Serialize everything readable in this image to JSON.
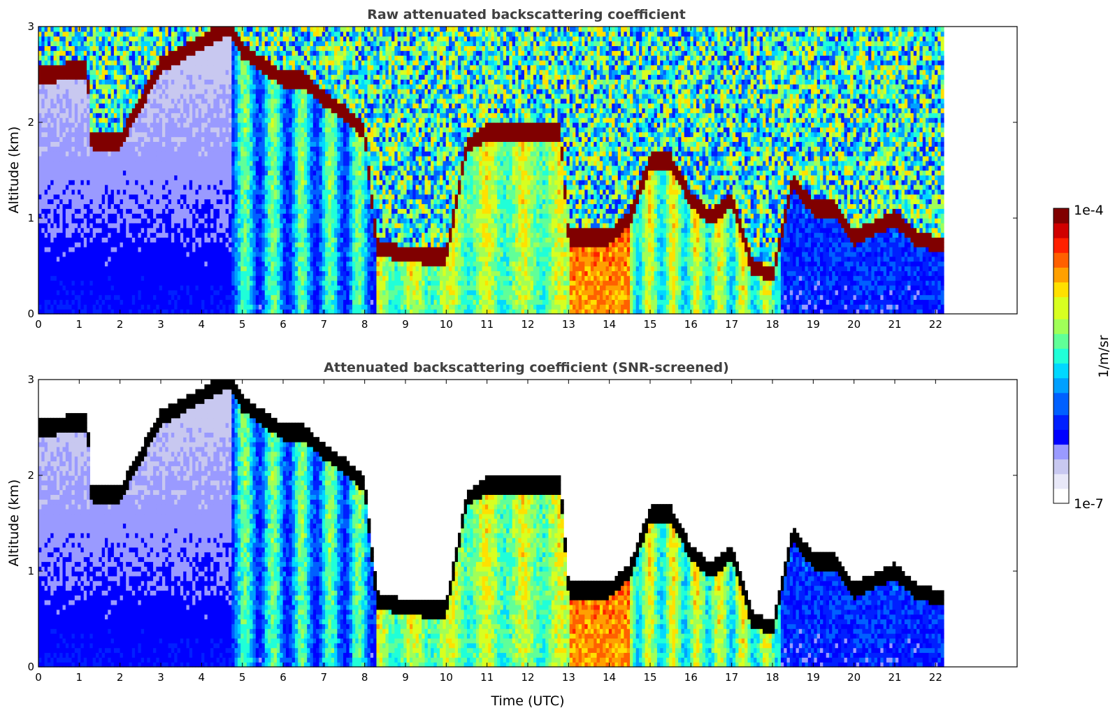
{
  "colormap": [
    "#ffffff",
    "#e8e8f8",
    "#c8c8f0",
    "#9a9aff",
    "#0000ff",
    "#0020ff",
    "#0060ff",
    "#00a0ff",
    "#00d8ff",
    "#20ffd8",
    "#60ff98",
    "#a0ff58",
    "#d8ff20",
    "#ffe000",
    "#ffa000",
    "#ff6000",
    "#ff2000",
    "#d00000",
    "#800000"
  ],
  "panels": [
    {
      "title": "Raw attenuated backscattering coefficient",
      "ylabel": "Altitude (km)",
      "xlabel": "",
      "screened": false
    },
    {
      "title": "Attenuated backscattering coefficient (SNR-screened)",
      "ylabel": "Altitude (km)",
      "xlabel": "Time (UTC)",
      "screened": true
    }
  ],
  "colorbar": {
    "label": "1/m/sr",
    "max_label": "1e-4",
    "min_label": "1e-7"
  },
  "chart_data": [
    {
      "type": "heatmap",
      "title": "Raw attenuated backscattering coefficient",
      "xlabel": "",
      "ylabel": "Altitude (km)",
      "xlim": [
        0,
        24
      ],
      "ylim": [
        0,
        3
      ],
      "xticks": [
        "0",
        "1",
        "2",
        "3",
        "4",
        "5",
        "6",
        "7",
        "8",
        "9",
        "10",
        "11",
        "12",
        "13",
        "14",
        "15",
        "16",
        "17",
        "18",
        "19",
        "20",
        "21",
        "22"
      ],
      "yticks": [
        "0",
        "1",
        "2",
        "3"
      ],
      "colorscale": "log",
      "zlim": [
        "1e-7",
        "1e-4"
      ],
      "zlabel": "1/m/sr",
      "data_extent_hours": [
        0,
        22.2
      ],
      "cloud_top_layer_km": {
        "time_h": [
          0.4,
          0.7,
          1.2,
          1.3,
          2.0,
          3.0,
          4.7,
          5.0,
          5.5,
          6.0,
          6.5,
          7.0,
          7.5,
          8.0,
          8.3,
          8.7,
          9.5,
          10.0,
          10.5,
          11.0,
          12.0,
          12.8,
          13.0,
          14.0,
          14.5,
          15.0,
          15.5,
          16.0,
          16.5,
          17.0,
          17.5,
          18.0,
          18.5,
          19.0,
          19.5,
          20.0,
          20.5,
          21.0,
          21.5,
          22.2
        ],
        "alt_km": [
          2.5,
          2.55,
          2.55,
          1.8,
          1.8,
          2.6,
          3.0,
          2.75,
          2.6,
          2.45,
          2.45,
          2.25,
          2.1,
          1.9,
          0.7,
          0.65,
          0.6,
          0.6,
          1.75,
          1.9,
          1.9,
          1.9,
          0.8,
          0.8,
          1.0,
          1.6,
          1.6,
          1.2,
          1.0,
          1.2,
          0.5,
          0.4,
          1.4,
          1.1,
          1.1,
          0.8,
          0.9,
          1.0,
          0.8,
          0.7
        ]
      }
    },
    {
      "type": "heatmap",
      "title": "Attenuated backscattering coefficient (SNR-screened)",
      "xlabel": "Time (UTC)",
      "ylabel": "Altitude (km)",
      "xlim": [
        0,
        24
      ],
      "ylim": [
        0,
        3
      ],
      "xticks": [
        "0",
        "1",
        "2",
        "3",
        "4",
        "5",
        "6",
        "7",
        "8",
        "9",
        "10",
        "11",
        "12",
        "13",
        "14",
        "15",
        "16",
        "17",
        "18",
        "19",
        "20",
        "21",
        "22"
      ],
      "yticks": [
        "0",
        "1",
        "2",
        "3"
      ],
      "colorscale": "log",
      "zlim": [
        "1e-7",
        "1e-4"
      ],
      "zlabel": "1/m/sr",
      "data_extent_hours": [
        0,
        22.2
      ]
    }
  ]
}
